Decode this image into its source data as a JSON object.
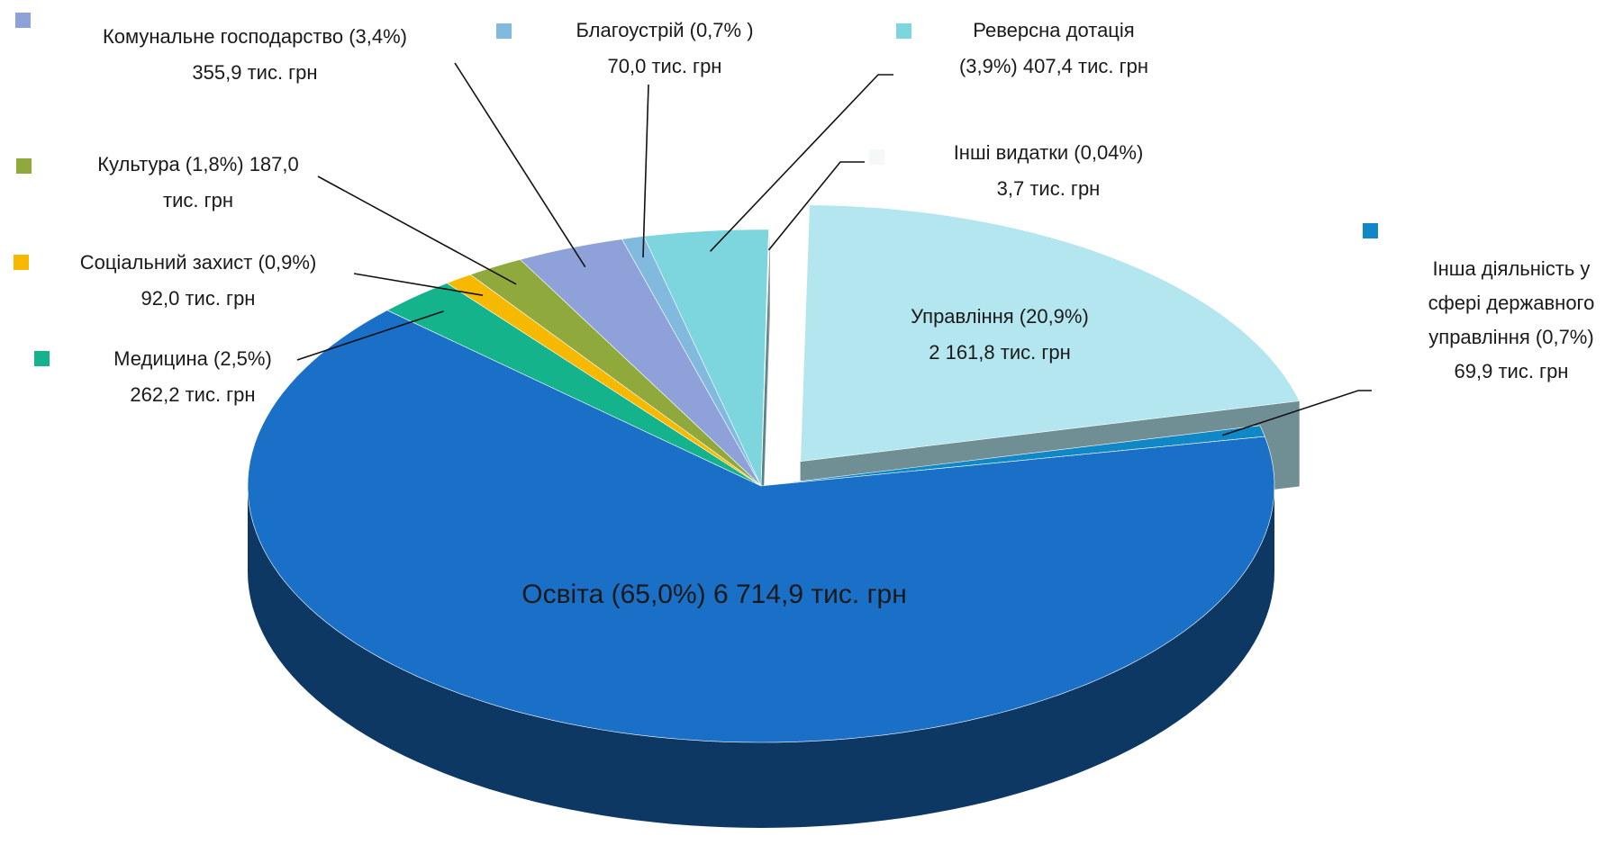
{
  "chart_data": {
    "type": "pie",
    "labels": [
      [
        "Управління (20,9%)",
        "2 161,8 тис. грн"
      ],
      [
        "Інша діяльність у",
        "сфері державного",
        "управління (0,7%)",
        "69,9 тис. грн"
      ],
      [
        "Освіта (65,0%) 6 714,9 тис. грн"
      ],
      [
        "Медицина (2,5%)",
        "262,2 тис. грн"
      ],
      [
        "Соціальний захист (0,9%)",
        "92,0 тис. грн"
      ],
      [
        "Культура (1,8%)  187,0",
        "тис. грн"
      ],
      [
        "Комунальне господарство (3,4%)",
        "355,9 тис. грн"
      ],
      [
        "Благоустрій (0,7% )",
        "70,0 тис. грн"
      ],
      [
        "Реверсна дотація",
        "(3,9%)  407,4 тис. грн"
      ],
      [
        "Інші видатки (0,04%)",
        "3,7 тис. грн"
      ]
    ],
    "values": [
      20.9,
      0.7,
      65.0,
      2.5,
      0.9,
      1.8,
      3.4,
      0.7,
      3.9,
      0.04
    ],
    "colors": [
      "#b3e6ef",
      "#1188c6",
      "#1a6fc6",
      "#15b38b",
      "#f7b900",
      "#90a93d",
      "#8ea2d9",
      "#82badf",
      "#7dd5de",
      "#f4f8f8"
    ],
    "exploded": [
      true,
      false,
      false,
      false,
      false,
      false,
      false,
      false,
      false,
      false
    ]
  }
}
